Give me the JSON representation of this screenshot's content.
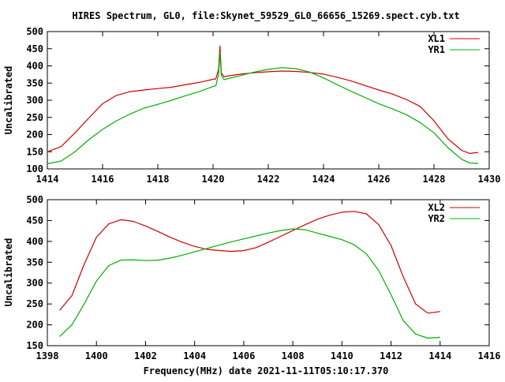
{
  "figure": {
    "title": "HIRES Spectrum, GL0, file:Skynet_59529_GL0_66656_15269.spect.cyb.txt",
    "xlabel": "Frequency(MHz) date 2021-11-11T05:10:17.370"
  },
  "chart_data": [
    {
      "type": "line",
      "ylabel": "Uncalibrated",
      "xlim": [
        1414,
        1430
      ],
      "ylim": [
        100,
        500
      ],
      "xticks": [
        1414,
        1416,
        1418,
        1420,
        1422,
        1424,
        1426,
        1428,
        1430
      ],
      "yticks": [
        100,
        150,
        200,
        250,
        300,
        350,
        400,
        450,
        500
      ],
      "grid": false,
      "legend": "top-right",
      "series": [
        {
          "name": "XL1",
          "color": "#d00000",
          "x": [
            1414,
            1414.5,
            1415,
            1415.5,
            1416,
            1416.5,
            1417,
            1417.5,
            1418,
            1418.5,
            1419,
            1419.5,
            1420,
            1420.1,
            1420.2,
            1420.25,
            1420.3,
            1420.4,
            1420.5,
            1421,
            1421.5,
            1422,
            1422.5,
            1423,
            1423.5,
            1424,
            1424.5,
            1425,
            1425.5,
            1426,
            1426.5,
            1427,
            1427.5,
            1428,
            1428.5,
            1429,
            1429.3,
            1429.6
          ],
          "y": [
            150,
            165,
            205,
            248,
            290,
            314,
            325,
            330,
            334,
            338,
            345,
            352,
            361,
            362,
            390,
            458,
            380,
            368,
            370,
            376,
            380,
            383,
            385,
            384,
            381,
            376,
            367,
            356,
            343,
            330,
            318,
            302,
            282,
            240,
            188,
            154,
            145,
            148
          ]
        },
        {
          "name": "YR1",
          "color": "#00b000",
          "x": [
            1414,
            1414.5,
            1415,
            1415.5,
            1416,
            1416.5,
            1417,
            1417.5,
            1418,
            1418.5,
            1419,
            1419.5,
            1420,
            1420.1,
            1420.2,
            1420.25,
            1420.3,
            1420.4,
            1420.5,
            1421,
            1421.5,
            1422,
            1422.5,
            1423,
            1423.5,
            1424,
            1424.5,
            1425,
            1425.5,
            1426,
            1426.5,
            1427,
            1427.5,
            1428,
            1428.5,
            1429,
            1429.3,
            1429.6
          ],
          "y": [
            115,
            123,
            150,
            185,
            215,
            240,
            260,
            277,
            288,
            300,
            313,
            325,
            340,
            342,
            375,
            440,
            372,
            360,
            362,
            372,
            382,
            390,
            395,
            392,
            382,
            365,
            345,
            326,
            308,
            290,
            275,
            258,
            235,
            205,
            162,
            128,
            117,
            116
          ]
        }
      ]
    },
    {
      "type": "line",
      "ylabel": "Uncalibrated",
      "xlim": [
        1398,
        1416
      ],
      "ylim": [
        150,
        500
      ],
      "xticks": [
        1398,
        1400,
        1402,
        1404,
        1406,
        1408,
        1410,
        1412,
        1414,
        1416
      ],
      "yticks": [
        150,
        200,
        250,
        300,
        350,
        400,
        450,
        500
      ],
      "grid": false,
      "legend": "top-right",
      "series": [
        {
          "name": "XL2",
          "color": "#d00000",
          "x": [
            1398.5,
            1399,
            1399.5,
            1400,
            1400.5,
            1401,
            1401.5,
            1402,
            1402.5,
            1403,
            1403.5,
            1404,
            1404.5,
            1405,
            1405.5,
            1406,
            1406.5,
            1407,
            1407.5,
            1408,
            1408.5,
            1409,
            1409.5,
            1410,
            1410.5,
            1411,
            1411.5,
            1412,
            1412.5,
            1413,
            1413.5,
            1414
          ],
          "y": [
            235,
            270,
            345,
            410,
            442,
            452,
            448,
            437,
            424,
            410,
            398,
            388,
            381,
            378,
            376,
            378,
            385,
            398,
            412,
            426,
            440,
            453,
            463,
            470,
            472,
            466,
            440,
            390,
            315,
            250,
            228,
            232
          ]
        },
        {
          "name": "YR2",
          "color": "#00b000",
          "x": [
            1398.5,
            1399,
            1399.5,
            1400,
            1400.5,
            1401,
            1401.5,
            1402,
            1402.5,
            1403,
            1403.5,
            1404,
            1404.5,
            1405,
            1405.5,
            1406,
            1406.5,
            1407,
            1407.5,
            1408,
            1408.5,
            1409,
            1409.5,
            1410,
            1410.5,
            1411,
            1411.5,
            1412,
            1412.5,
            1413,
            1413.5,
            1414
          ],
          "y": [
            172,
            200,
            250,
            305,
            342,
            355,
            356,
            354,
            355,
            360,
            367,
            375,
            383,
            391,
            399,
            406,
            413,
            420,
            426,
            430,
            428,
            420,
            412,
            404,
            392,
            370,
            330,
            272,
            210,
            178,
            168,
            170
          ]
        }
      ]
    }
  ]
}
